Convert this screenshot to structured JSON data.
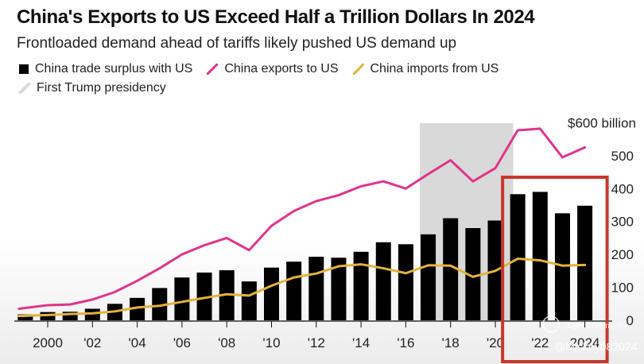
{
  "header": {
    "title": "China's Exports to US Exceed Half a Trillion Dollars In 2024",
    "subtitle": "Frontloaded demand ahead of tariffs likely pushed US demand up"
  },
  "legend": {
    "surplus": "China trade surplus with US",
    "exports": "China exports to US",
    "imports": "China imports from US",
    "trump": "First Trump presidency"
  },
  "colors": {
    "surplus": "#000000",
    "exports": "#e0348c",
    "imports": "#e3b23c",
    "trump_shade": "#d9d9d9",
    "highlight": "#c8372d"
  },
  "watermark": {
    "brand": "Tiger Community",
    "handle": "@Mickey082024"
  },
  "chart_data": {
    "type": "bar",
    "title": "China's Exports to US Exceed Half a Trillion Dollars In 2024",
    "subtitle": "Frontloaded demand ahead of tariffs likely pushed US demand up",
    "x": [
      1999,
      2000,
      2001,
      2002,
      2003,
      2004,
      2005,
      2006,
      2007,
      2008,
      2009,
      2010,
      2011,
      2012,
      2013,
      2014,
      2015,
      2016,
      2017,
      2018,
      2019,
      2020,
      2021,
      2022,
      2023,
      2024
    ],
    "x_tick_values": [
      2000,
      2002,
      2004,
      2006,
      2008,
      2010,
      2012,
      2014,
      2016,
      2018,
      2020,
      2022,
      2024
    ],
    "x_tick_labels": [
      "2000",
      "'02",
      "'04",
      "'06",
      "'08",
      "'10",
      "'12",
      "'14",
      "'16",
      "'18",
      "'20",
      "'22",
      "2024"
    ],
    "y_tick_values": [
      0,
      100,
      200,
      300,
      400,
      500,
      600
    ],
    "y_tick_labels": [
      "0",
      "100",
      "200",
      "300",
      "400",
      "500",
      "$600 billion"
    ],
    "ylim": [
      0,
      600
    ],
    "series": [
      {
        "name": "China trade surplus with US",
        "type": "bar",
        "values": [
          18,
          25,
          26,
          35,
          50,
          68,
          98,
          130,
          145,
          152,
          118,
          160,
          178,
          193,
          190,
          208,
          237,
          231,
          261,
          310,
          280,
          303,
          383,
          390,
          325,
          348
        ]
      },
      {
        "name": "China exports to US",
        "type": "line",
        "values": [
          35,
          46,
          48,
          63,
          86,
          120,
          158,
          200,
          228,
          250,
          213,
          287,
          332,
          362,
          380,
          407,
          422,
          400,
          444,
          486,
          422,
          462,
          577,
          582,
          495,
          525
        ]
      },
      {
        "name": "China imports from US",
        "type": "line",
        "values": [
          13,
          16,
          19,
          21,
          27,
          39,
          44,
          56,
          68,
          79,
          75,
          105,
          130,
          142,
          164,
          170,
          158,
          143,
          167,
          166,
          132,
          150,
          187,
          182,
          166,
          168
        ]
      }
    ],
    "shaded_ranges": [
      {
        "name": "First Trump presidency",
        "from": 2017,
        "to": 2020.8
      }
    ],
    "annotations": [
      {
        "type": "highlight-box",
        "from_x": 2021,
        "to_x": 2024
      }
    ],
    "grid": false,
    "legend_position": "top-left"
  }
}
